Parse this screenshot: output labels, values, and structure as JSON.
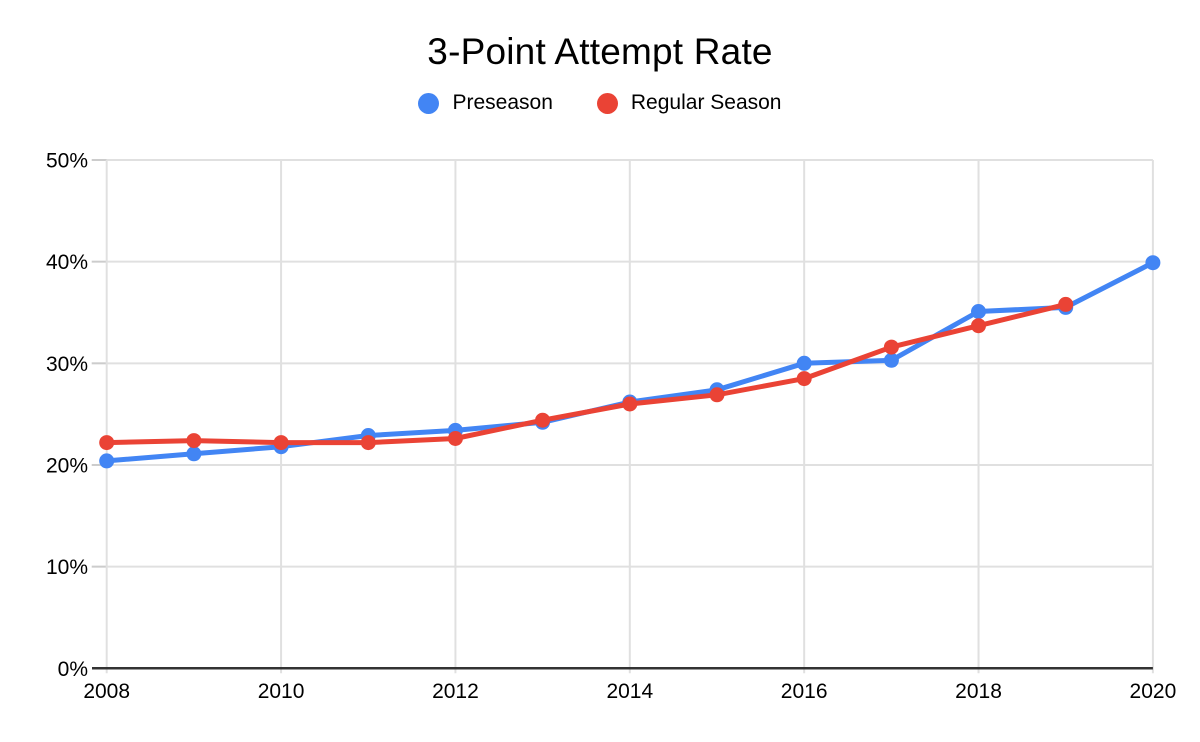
{
  "chart": {
    "title": "3-Point Attempt Rate"
  },
  "chart_data": {
    "type": "line",
    "title": "3-Point Attempt Rate",
    "xlabel": "",
    "ylabel": "",
    "xlim": [
      2008,
      2020
    ],
    "ylim": [
      0,
      50
    ],
    "grid": true,
    "legend_position": "top",
    "background_color": "#FFFFFF",
    "gridline_color": "#E0E0E0",
    "tick_color": "#CCCCCC",
    "axis_line_color": "#333333",
    "text_color": "#000000",
    "x_ticks": [
      {
        "value": 2008,
        "label": "2008"
      },
      {
        "value": 2010,
        "label": "2010"
      },
      {
        "value": 2012,
        "label": "2012"
      },
      {
        "value": 2014,
        "label": "2014"
      },
      {
        "value": 2016,
        "label": "2016"
      },
      {
        "value": 2018,
        "label": "2018"
      },
      {
        "value": 2020,
        "label": "2020"
      }
    ],
    "y_ticks": [
      {
        "value": 0,
        "label": "0%"
      },
      {
        "value": 10,
        "label": "10%"
      },
      {
        "value": 20,
        "label": "20%"
      },
      {
        "value": 30,
        "label": "30%"
      },
      {
        "value": 40,
        "label": "40%"
      },
      {
        "value": 50,
        "label": "50%"
      }
    ],
    "series": [
      {
        "name": "Preseason",
        "color": "#4285F4",
        "x": [
          2008,
          2009,
          2010,
          2011,
          2012,
          2013,
          2014,
          2015,
          2016,
          2017,
          2018,
          2019,
          2020
        ],
        "values": [
          20.4,
          21.1,
          21.8,
          22.9,
          23.4,
          24.2,
          26.2,
          27.4,
          30.0,
          30.3,
          35.1,
          35.5,
          39.9
        ]
      },
      {
        "name": "Regular Season",
        "color": "#EA4335",
        "x": [
          2008,
          2009,
          2010,
          2011,
          2012,
          2013,
          2014,
          2015,
          2016,
          2017,
          2018,
          2019
        ],
        "values": [
          22.2,
          22.4,
          22.2,
          22.2,
          22.6,
          24.4,
          26.0,
          26.9,
          28.5,
          31.6,
          33.7,
          35.8
        ]
      }
    ]
  }
}
